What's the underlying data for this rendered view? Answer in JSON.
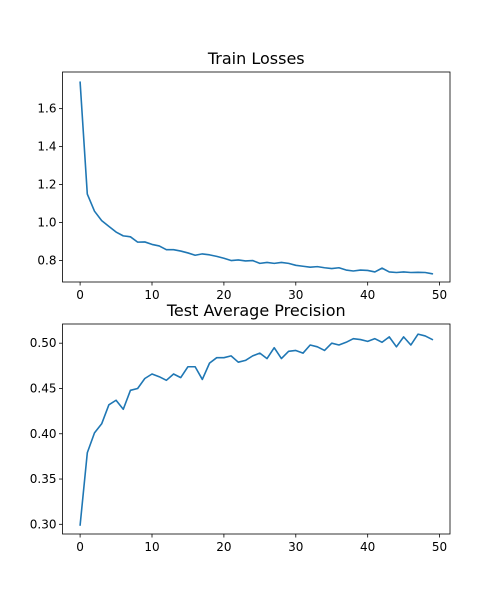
{
  "chart_data": [
    {
      "type": "line",
      "title": "Train Losses",
      "xlabel": "",
      "ylabel": "",
      "xlim": [
        -2.45,
        51.45
      ],
      "ylim": [
        0.687,
        1.793
      ],
      "xticks": [
        0,
        10,
        20,
        30,
        40,
        50
      ],
      "yticks": [
        0.8,
        1.0,
        1.2,
        1.4,
        1.6
      ],
      "ytick_labels": [
        "0.8",
        "1.0",
        "1.2",
        "1.4",
        "1.6"
      ],
      "grid": false,
      "color": "#1f77b4",
      "series": [
        {
          "x": [
            0,
            1,
            2,
            3,
            4,
            5,
            6,
            7,
            8,
            9,
            10,
            11,
            12,
            13,
            14,
            15,
            16,
            17,
            18,
            19,
            20,
            21,
            22,
            23,
            24,
            25,
            26,
            27,
            28,
            29,
            30,
            31,
            32,
            33,
            34,
            35,
            36,
            37,
            38,
            39,
            40,
            41,
            42,
            43,
            44,
            45,
            46,
            47,
            48,
            49
          ],
          "values": [
            1.74,
            1.15,
            1.06,
            1.01,
            0.98,
            0.95,
            0.93,
            0.925,
            0.897,
            0.898,
            0.885,
            0.877,
            0.857,
            0.857,
            0.85,
            0.84,
            0.828,
            0.835,
            0.83,
            0.822,
            0.812,
            0.8,
            0.803,
            0.798,
            0.8,
            0.785,
            0.79,
            0.785,
            0.79,
            0.785,
            0.775,
            0.77,
            0.765,
            0.768,
            0.762,
            0.758,
            0.762,
            0.75,
            0.745,
            0.75,
            0.748,
            0.74,
            0.76,
            0.74,
            0.737,
            0.74,
            0.737,
            0.738,
            0.737,
            0.73
          ]
        }
      ]
    },
    {
      "type": "line",
      "title": "Test Average Precision",
      "xlabel": "",
      "ylabel": "",
      "xlim": [
        -2.45,
        51.45
      ],
      "ylim": [
        0.2893,
        0.5212
      ],
      "xticks": [
        0,
        10,
        20,
        30,
        40,
        50
      ],
      "yticks": [
        0.3,
        0.35,
        0.4,
        0.45,
        0.5
      ],
      "ytick_labels": [
        "0.30",
        "0.35",
        "0.40",
        "0.45",
        "0.50"
      ],
      "grid": false,
      "color": "#1f77b4",
      "series": [
        {
          "x": [
            0,
            1,
            2,
            3,
            4,
            5,
            6,
            7,
            8,
            9,
            10,
            11,
            12,
            13,
            14,
            15,
            16,
            17,
            18,
            19,
            20,
            21,
            22,
            23,
            24,
            25,
            26,
            27,
            28,
            29,
            30,
            31,
            32,
            33,
            34,
            35,
            36,
            37,
            38,
            39,
            40,
            41,
            42,
            43,
            44,
            45,
            46,
            47,
            48,
            49
          ],
          "values": [
            0.299,
            0.379,
            0.401,
            0.411,
            0.432,
            0.437,
            0.427,
            0.448,
            0.45,
            0.461,
            0.466,
            0.463,
            0.459,
            0.466,
            0.462,
            0.474,
            0.474,
            0.46,
            0.478,
            0.484,
            0.484,
            0.486,
            0.479,
            0.481,
            0.486,
            0.489,
            0.483,
            0.495,
            0.483,
            0.491,
            0.492,
            0.489,
            0.498,
            0.496,
            0.492,
            0.5,
            0.498,
            0.501,
            0.505,
            0.504,
            0.502,
            0.505,
            0.501,
            0.507,
            0.496,
            0.507,
            0.498,
            0.51,
            0.508,
            0.504
          ]
        }
      ]
    }
  ]
}
